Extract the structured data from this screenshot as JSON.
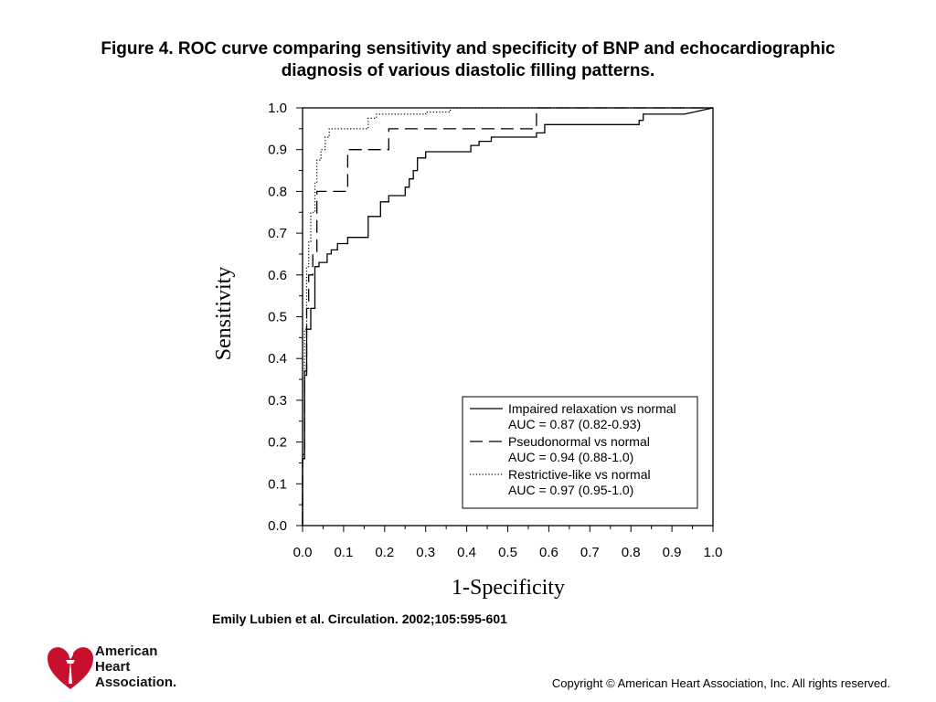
{
  "slide": {
    "title_line1": "Figure 4. ROC curve comparing sensitivity and specificity of BNP and echocardiographic",
    "title_line2": "diagnosis of various diastolic filling patterns.",
    "citation": "Emily Lubien et al. Circulation. 2002;105:595-601",
    "copyright": "Copyright © American Heart Association, Inc. All rights reserved.",
    "logo": {
      "name": "aha-heart-torch-logo",
      "line1": "American",
      "line2": "Heart",
      "line3": "Association.",
      "color": "#c8102e"
    }
  },
  "chart_data": {
    "type": "line",
    "xlabel": "1-Specificity",
    "ylabel": "Sensitivity",
    "xlim": [
      0,
      1
    ],
    "ylim": [
      0,
      1
    ],
    "x_ticks": [
      "0.0",
      "0.1",
      "0.2",
      "0.3",
      "0.4",
      "0.5",
      "0.6",
      "0.7",
      "0.8",
      "0.9",
      "1.0"
    ],
    "y_ticks": [
      "0.0",
      "0.1",
      "0.2",
      "0.3",
      "0.4",
      "0.5",
      "0.6",
      "0.7",
      "0.8",
      "0.9",
      "1.0"
    ],
    "grid": false,
    "legend_position": "bottom-right",
    "series": [
      {
        "name": "Impaired relaxation vs normal",
        "auc": "AUC = 0.87 (0.82-0.93)",
        "style": "solid",
        "points": [
          [
            0,
            0
          ],
          [
            0,
            0.16
          ],
          [
            0.005,
            0.16
          ],
          [
            0.005,
            0.36
          ],
          [
            0.01,
            0.36
          ],
          [
            0.01,
            0.47
          ],
          [
            0.02,
            0.47
          ],
          [
            0.02,
            0.52
          ],
          [
            0.03,
            0.52
          ],
          [
            0.03,
            0.62
          ],
          [
            0.04,
            0.62
          ],
          [
            0.04,
            0.63
          ],
          [
            0.06,
            0.63
          ],
          [
            0.06,
            0.65
          ],
          [
            0.07,
            0.65
          ],
          [
            0.07,
            0.66
          ],
          [
            0.085,
            0.66
          ],
          [
            0.085,
            0.675
          ],
          [
            0.11,
            0.675
          ],
          [
            0.11,
            0.69
          ],
          [
            0.16,
            0.69
          ],
          [
            0.16,
            0.74
          ],
          [
            0.19,
            0.74
          ],
          [
            0.19,
            0.775
          ],
          [
            0.21,
            0.775
          ],
          [
            0.21,
            0.79
          ],
          [
            0.25,
            0.79
          ],
          [
            0.25,
            0.81
          ],
          [
            0.26,
            0.81
          ],
          [
            0.26,
            0.83
          ],
          [
            0.27,
            0.83
          ],
          [
            0.27,
            0.85
          ],
          [
            0.28,
            0.85
          ],
          [
            0.28,
            0.88
          ],
          [
            0.3,
            0.88
          ],
          [
            0.3,
            0.895
          ],
          [
            0.41,
            0.895
          ],
          [
            0.41,
            0.91
          ],
          [
            0.43,
            0.91
          ],
          [
            0.43,
            0.92
          ],
          [
            0.46,
            0.92
          ],
          [
            0.46,
            0.93
          ],
          [
            0.57,
            0.93
          ],
          [
            0.57,
            0.94
          ],
          [
            0.59,
            0.94
          ],
          [
            0.59,
            0.96
          ],
          [
            0.82,
            0.96
          ],
          [
            0.82,
            0.97
          ],
          [
            0.83,
            0.97
          ],
          [
            0.83,
            0.985
          ],
          [
            0.93,
            0.985
          ],
          [
            1,
            1
          ]
        ]
      },
      {
        "name": "Pseudonormal vs normal",
        "auc": "AUC = 0.94 (0.88-1.0)",
        "style": "dashed",
        "points": [
          [
            0,
            0
          ],
          [
            0,
            0.16
          ],
          [
            0.005,
            0.16
          ],
          [
            0.005,
            0.37
          ],
          [
            0.01,
            0.37
          ],
          [
            0.01,
            0.52
          ],
          [
            0.015,
            0.52
          ],
          [
            0.015,
            0.6
          ],
          [
            0.025,
            0.6
          ],
          [
            0.025,
            0.65
          ],
          [
            0.035,
            0.65
          ],
          [
            0.035,
            0.8
          ],
          [
            0.11,
            0.8
          ],
          [
            0.11,
            0.9
          ],
          [
            0.21,
            0.9
          ],
          [
            0.21,
            0.95
          ],
          [
            0.57,
            0.95
          ],
          [
            0.57,
            1
          ],
          [
            1,
            1
          ]
        ]
      },
      {
        "name": "Restrictive-like vs normal",
        "auc": "AUC = 0.97 (0.95-1.0)",
        "style": "dotted",
        "points": [
          [
            0,
            0
          ],
          [
            0,
            0.17
          ],
          [
            0.005,
            0.17
          ],
          [
            0.005,
            0.47
          ],
          [
            0.01,
            0.47
          ],
          [
            0.01,
            0.62
          ],
          [
            0.015,
            0.62
          ],
          [
            0.015,
            0.68
          ],
          [
            0.02,
            0.68
          ],
          [
            0.02,
            0.75
          ],
          [
            0.03,
            0.75
          ],
          [
            0.03,
            0.82
          ],
          [
            0.035,
            0.82
          ],
          [
            0.035,
            0.875
          ],
          [
            0.045,
            0.875
          ],
          [
            0.045,
            0.9
          ],
          [
            0.055,
            0.9
          ],
          [
            0.055,
            0.93
          ],
          [
            0.065,
            0.93
          ],
          [
            0.065,
            0.95
          ],
          [
            0.16,
            0.95
          ],
          [
            0.16,
            0.975
          ],
          [
            0.18,
            0.975
          ],
          [
            0.18,
            0.985
          ],
          [
            0.3,
            0.985
          ],
          [
            0.3,
            0.99
          ],
          [
            0.36,
            0.99
          ],
          [
            0.36,
            1
          ],
          [
            1,
            1
          ]
        ]
      }
    ]
  }
}
